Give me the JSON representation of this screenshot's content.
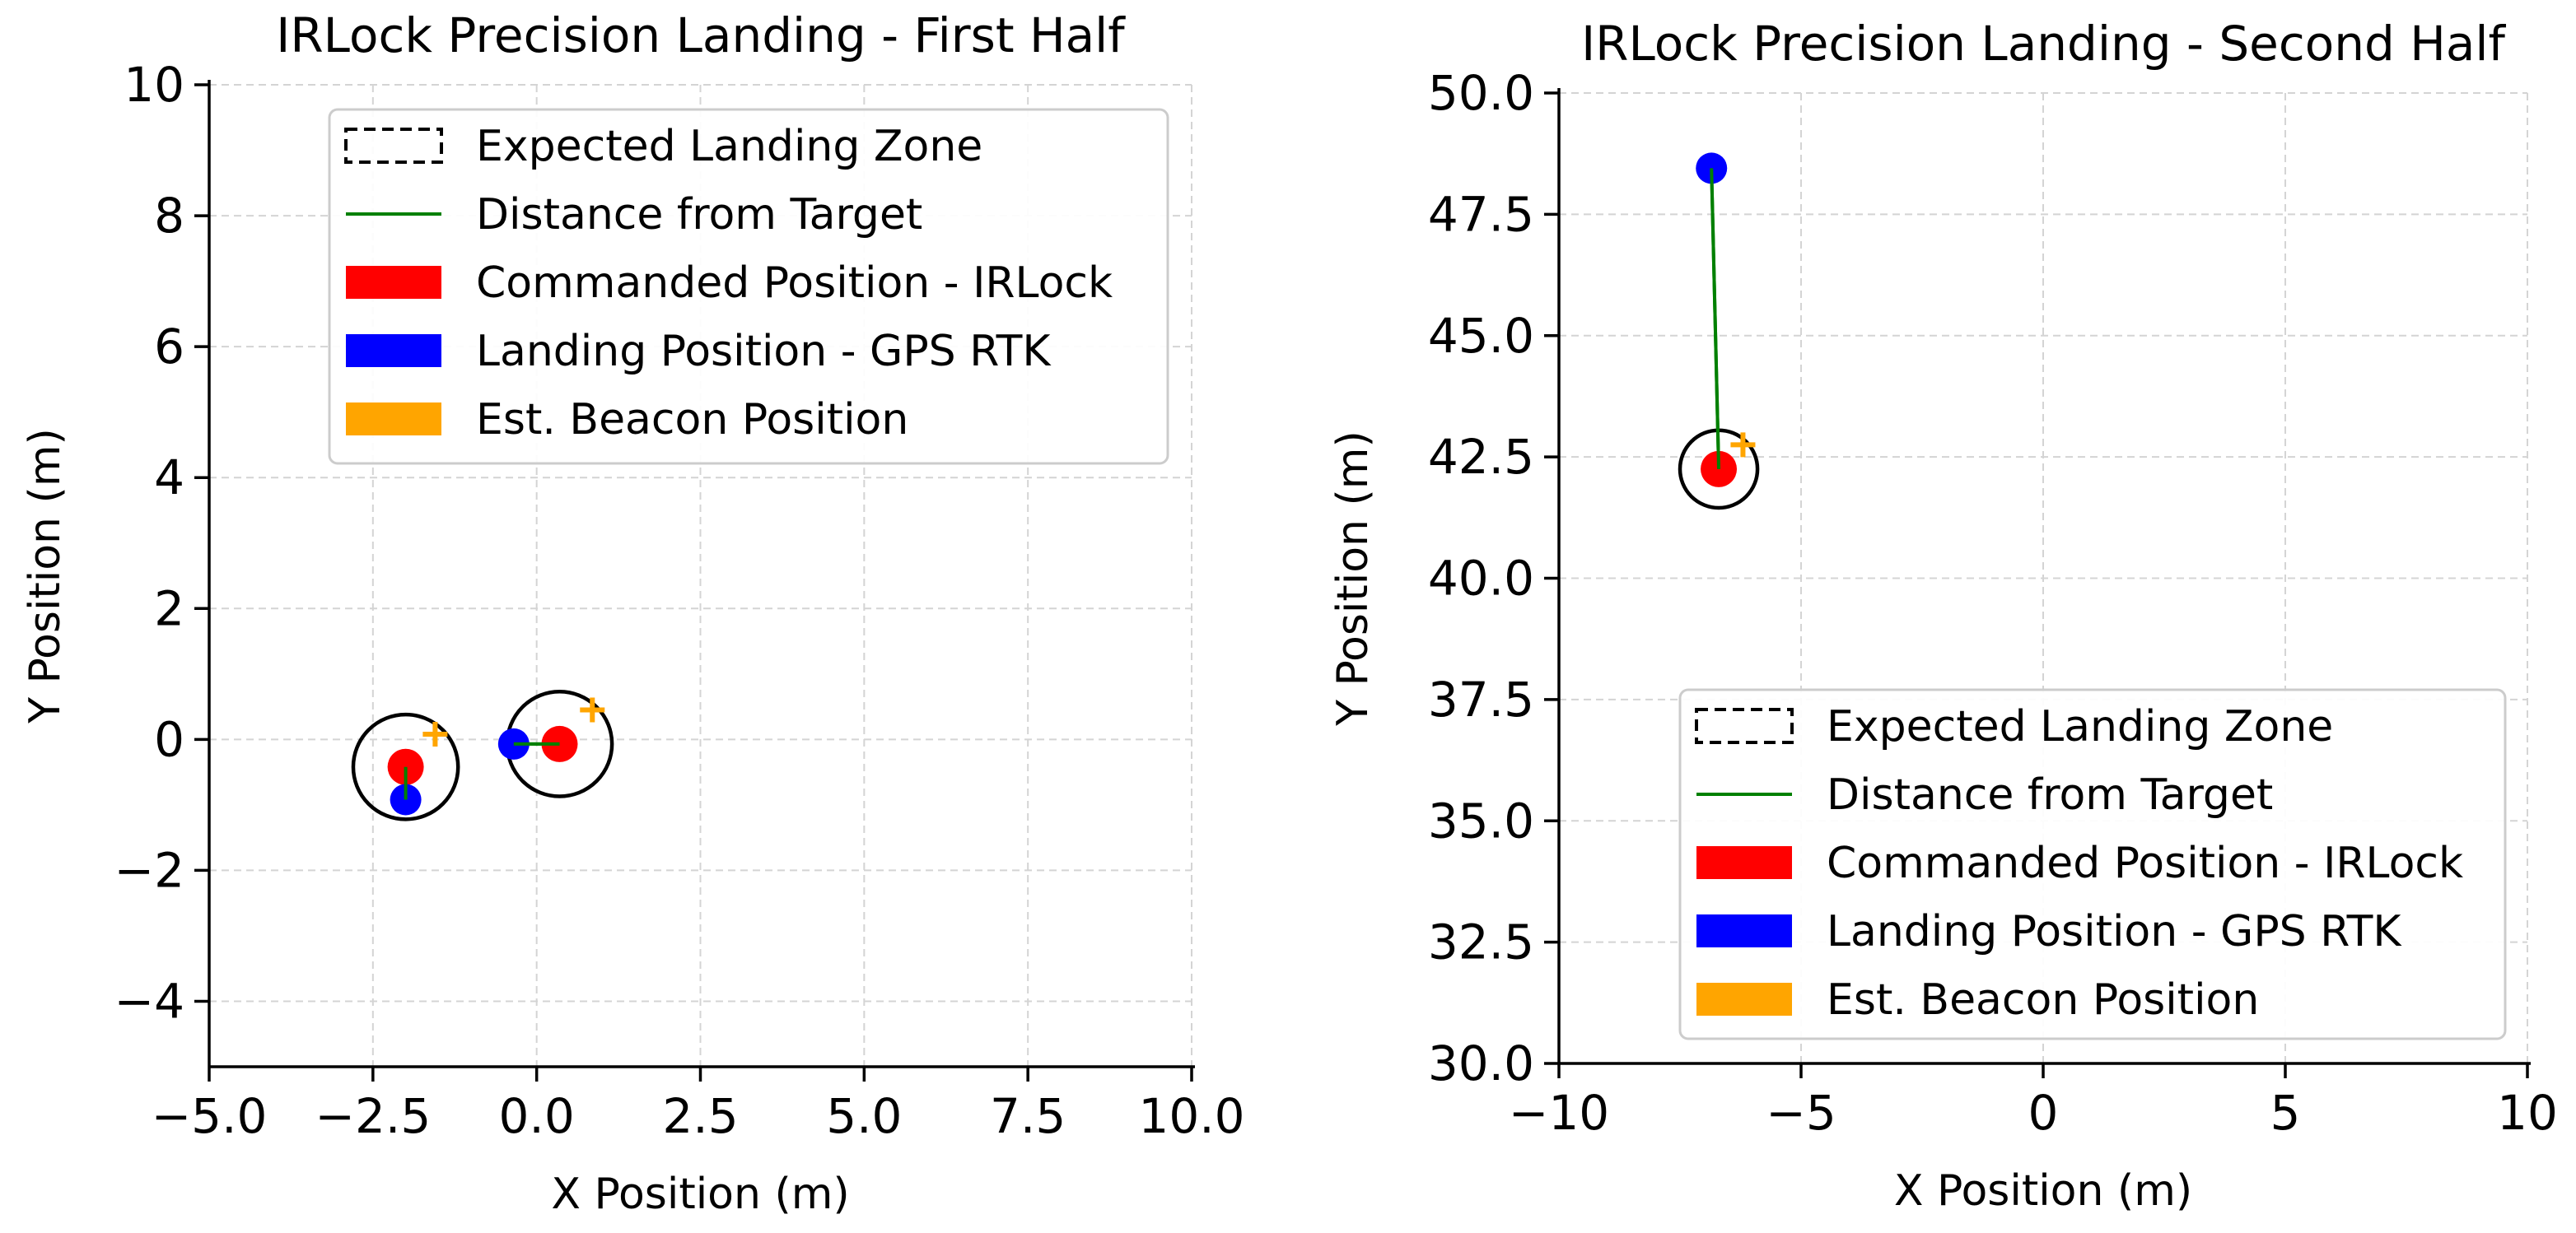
{
  "chart_data": [
    {
      "type": "scatter",
      "title": "IRLock Precision Landing - First Half",
      "xlabel": "X Position (m)",
      "ylabel": "Y Position (m)",
      "xlim": [
        -5,
        10
      ],
      "ylim": [
        -5,
        10
      ],
      "xticks": [
        -5,
        -2.5,
        0,
        2.5,
        5,
        7.5,
        10
      ],
      "xtick_labels": [
        "−5.0",
        "−2.5",
        "0.0",
        "2.5",
        "5.0",
        "7.5",
        "10.0"
      ],
      "yticks": [
        -4,
        -2,
        0,
        2,
        4,
        6,
        8,
        10
      ],
      "ytick_labels": [
        "−4",
        "−2",
        "0",
        "2",
        "4",
        "6",
        "8",
        "10"
      ],
      "grid": true,
      "legend_position": "upper-right",
      "legend": [
        {
          "label": "Expected Landing Zone",
          "kind": "dashed-box",
          "color": "#000000"
        },
        {
          "label": "Distance from Target",
          "kind": "line",
          "color": "#008000"
        },
        {
          "label": "Commanded Position - IRLock",
          "kind": "patch",
          "color": "#ff0000"
        },
        {
          "label": "Landing Position - GPS RTK",
          "kind": "patch",
          "color": "#0000ff"
        },
        {
          "label": "Est. Beacon Position",
          "kind": "patch",
          "color": "#ffa500"
        }
      ],
      "landings": [
        {
          "commanded": [
            -2.0,
            -0.42
          ],
          "landing": [
            -2.0,
            -0.92
          ],
          "beacon": [
            -1.55,
            0.08
          ],
          "zone_center": [
            -2.0,
            -0.42
          ],
          "zone_radius": 1.0
        },
        {
          "commanded": [
            0.35,
            -0.07
          ],
          "landing": [
            -0.35,
            -0.07
          ],
          "beacon": [
            0.85,
            0.45
          ],
          "zone_center": [
            0.35,
            -0.07
          ],
          "zone_radius": 1.0
        }
      ]
    },
    {
      "type": "scatter",
      "title": "IRLock Precision Landing - Second Half",
      "xlabel": "X Position (m)",
      "ylabel": "Y Position (m)",
      "xlim": [
        -10,
        10
      ],
      "ylim": [
        30,
        50
      ],
      "xticks": [
        -10,
        -5,
        0,
        5,
        10
      ],
      "xtick_labels": [
        "−10",
        "−5",
        "0",
        "5",
        "10"
      ],
      "yticks": [
        30,
        32.5,
        35,
        37.5,
        40,
        42.5,
        45,
        47.5,
        50
      ],
      "ytick_labels": [
        "30.0",
        "32.5",
        "35.0",
        "37.5",
        "40.0",
        "42.5",
        "45.0",
        "47.5",
        "50.0"
      ],
      "grid": true,
      "legend_position": "lower-right",
      "legend": [
        {
          "label": "Expected Landing Zone",
          "kind": "dashed-box",
          "color": "#000000"
        },
        {
          "label": "Distance from Target",
          "kind": "line",
          "color": "#008000"
        },
        {
          "label": "Commanded Position - IRLock",
          "kind": "patch",
          "color": "#ff0000"
        },
        {
          "label": "Landing Position - GPS RTK",
          "kind": "patch",
          "color": "#0000ff"
        },
        {
          "label": "Est. Beacon Position",
          "kind": "patch",
          "color": "#ffa500"
        }
      ],
      "landings": [
        {
          "commanded": [
            -6.7,
            42.25
          ],
          "landing": [
            -6.85,
            48.45
          ],
          "beacon": [
            -6.2,
            42.75
          ],
          "zone_center": [
            -6.7,
            42.25
          ],
          "zone_radius": 1.0
        }
      ]
    }
  ]
}
